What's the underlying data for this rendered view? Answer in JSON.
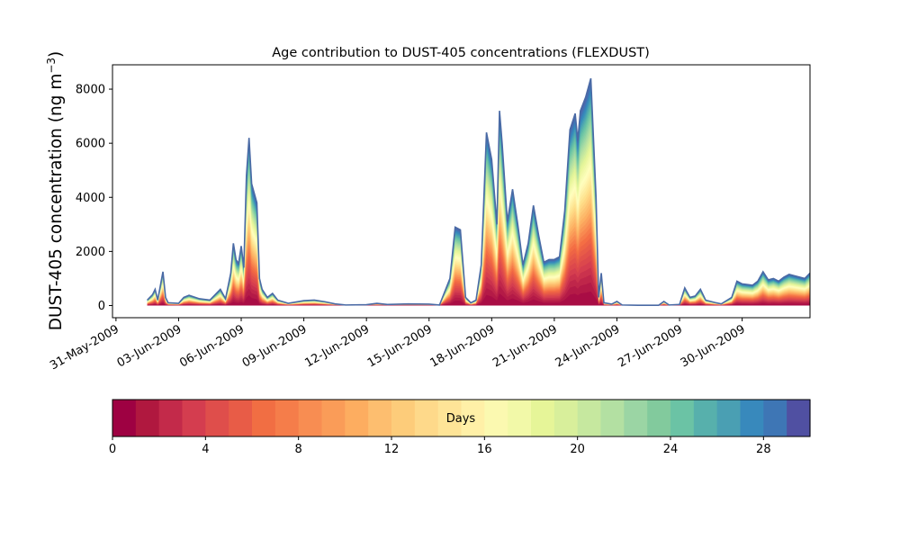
{
  "chart_data": {
    "type": "area",
    "stacking": "stacked",
    "title": "Age contribution to DUST-405 concentrations (FLEXDUST)",
    "xlabel": "",
    "ylabel": "DUST-405 concentration (ng m",
    "ylabel_superscript": "−3",
    "ylabel_suffix": ")",
    "xlim": [
      "2009-05-30T20:00",
      "2009-07-03T06:00"
    ],
    "ylim": [
      -450,
      8900
    ],
    "x_ticks": [
      "31-May-2009",
      "03-Jun-2009",
      "06-Jun-2009",
      "09-Jun-2009",
      "12-Jun-2009",
      "15-Jun-2009",
      "18-Jun-2009",
      "21-Jun-2009",
      "24-Jun-2009",
      "27-Jun-2009",
      "30-Jun-2009"
    ],
    "x_tick_dates": [
      "2009-05-31",
      "2009-06-03",
      "2009-06-06",
      "2009-06-09",
      "2009-06-12",
      "2009-06-15",
      "2009-06-18",
      "2009-06-21",
      "2009-06-24",
      "2009-06-27",
      "2009-06-30"
    ],
    "y_ticks": [
      0,
      2000,
      4000,
      6000,
      8000
    ],
    "grid": false,
    "legend": "none",
    "outline_color": "#4a6aa5",
    "total": [
      [
        "2009-06-01T12:00",
        200
      ],
      [
        "2009-06-01T18:00",
        400
      ],
      [
        "2009-06-01T21:00",
        600
      ],
      [
        "2009-06-02T00:00",
        200
      ],
      [
        "2009-06-02T06:00",
        1250
      ],
      [
        "2009-06-02T09:00",
        300
      ],
      [
        "2009-06-02T12:00",
        100
      ],
      [
        "2009-06-03T00:00",
        80
      ],
      [
        "2009-06-03T06:00",
        300
      ],
      [
        "2009-06-03T12:00",
        380
      ],
      [
        "2009-06-04T00:00",
        250
      ],
      [
        "2009-06-04T12:00",
        200
      ],
      [
        "2009-06-05T00:00",
        600
      ],
      [
        "2009-06-05T06:00",
        250
      ],
      [
        "2009-06-05T12:00",
        1200
      ],
      [
        "2009-06-05T15:00",
        2300
      ],
      [
        "2009-06-05T18:00",
        1700
      ],
      [
        "2009-06-05T21:00",
        1550
      ],
      [
        "2009-06-06T00:00",
        2200
      ],
      [
        "2009-06-06T03:00",
        1400
      ],
      [
        "2009-06-06T06:00",
        4800
      ],
      [
        "2009-06-06T09:00",
        6200
      ],
      [
        "2009-06-06T12:00",
        4500
      ],
      [
        "2009-06-06T18:00",
        3800
      ],
      [
        "2009-06-06T21:00",
        1000
      ],
      [
        "2009-06-07T00:00",
        600
      ],
      [
        "2009-06-07T06:00",
        300
      ],
      [
        "2009-06-07T12:00",
        450
      ],
      [
        "2009-06-07T18:00",
        200
      ],
      [
        "2009-06-08T06:00",
        80
      ],
      [
        "2009-06-09T00:00",
        180
      ],
      [
        "2009-06-09T12:00",
        200
      ],
      [
        "2009-06-10T00:00",
        140
      ],
      [
        "2009-06-10T12:00",
        60
      ],
      [
        "2009-06-11T00:00",
        20
      ],
      [
        "2009-06-12T00:00",
        30
      ],
      [
        "2009-06-12T12:00",
        80
      ],
      [
        "2009-06-13T00:00",
        40
      ],
      [
        "2009-06-14T00:00",
        60
      ],
      [
        "2009-06-15T00:00",
        50
      ],
      [
        "2009-06-15T12:00",
        20
      ],
      [
        "2009-06-16T00:00",
        1000
      ],
      [
        "2009-06-16T06:00",
        2900
      ],
      [
        "2009-06-16T12:00",
        2800
      ],
      [
        "2009-06-16T18:00",
        300
      ],
      [
        "2009-06-17T00:00",
        100
      ],
      [
        "2009-06-17T06:00",
        200
      ],
      [
        "2009-06-17T12:00",
        1500
      ],
      [
        "2009-06-17T18:00",
        6400
      ],
      [
        "2009-06-18T00:00",
        5400
      ],
      [
        "2009-06-18T06:00",
        3000
      ],
      [
        "2009-06-18T09:00",
        7200
      ],
      [
        "2009-06-18T12:00",
        6000
      ],
      [
        "2009-06-18T18:00",
        3100
      ],
      [
        "2009-06-19T00:00",
        4300
      ],
      [
        "2009-06-19T06:00",
        3000
      ],
      [
        "2009-06-19T12:00",
        1500
      ],
      [
        "2009-06-19T18:00",
        2300
      ],
      [
        "2009-06-20T00:00",
        3700
      ],
      [
        "2009-06-20T06:00",
        2600
      ],
      [
        "2009-06-20T12:00",
        1600
      ],
      [
        "2009-06-20T18:00",
        1700
      ],
      [
        "2009-06-21T00:00",
        1700
      ],
      [
        "2009-06-21T06:00",
        1800
      ],
      [
        "2009-06-21T12:00",
        3500
      ],
      [
        "2009-06-21T18:00",
        6500
      ],
      [
        "2009-06-22T00:00",
        7100
      ],
      [
        "2009-06-22T03:00",
        6100
      ],
      [
        "2009-06-22T06:00",
        7200
      ],
      [
        "2009-06-22T12:00",
        7700
      ],
      [
        "2009-06-22T18:00",
        8400
      ],
      [
        "2009-06-23T00:00",
        4000
      ],
      [
        "2009-06-23T03:00",
        300
      ],
      [
        "2009-06-23T06:00",
        1200
      ],
      [
        "2009-06-23T09:00",
        100
      ],
      [
        "2009-06-23T18:00",
        50
      ],
      [
        "2009-06-24T00:00",
        150
      ],
      [
        "2009-06-24T06:00",
        20
      ],
      [
        "2009-06-25T00:00",
        10
      ],
      [
        "2009-06-26T00:00",
        10
      ],
      [
        "2009-06-26T06:00",
        150
      ],
      [
        "2009-06-26T12:00",
        20
      ],
      [
        "2009-06-27T00:00",
        40
      ],
      [
        "2009-06-27T06:00",
        650
      ],
      [
        "2009-06-27T12:00",
        300
      ],
      [
        "2009-06-27T18:00",
        350
      ],
      [
        "2009-06-28T00:00",
        600
      ],
      [
        "2009-06-28T06:00",
        200
      ],
      [
        "2009-06-28T18:00",
        100
      ],
      [
        "2009-06-29T00:00",
        60
      ],
      [
        "2009-06-29T12:00",
        300
      ],
      [
        "2009-06-29T18:00",
        900
      ],
      [
        "2009-06-30T00:00",
        800
      ],
      [
        "2009-06-30T12:00",
        750
      ],
      [
        "2009-06-30T18:00",
        900
      ],
      [
        "2009-07-01T00:00",
        1250
      ],
      [
        "2009-07-01T06:00",
        950
      ],
      [
        "2009-07-01T12:00",
        1000
      ],
      [
        "2009-07-01T18:00",
        900
      ],
      [
        "2009-07-02T00:00",
        1050
      ],
      [
        "2009-07-02T06:00",
        1150
      ],
      [
        "2009-07-02T12:00",
        1100
      ],
      [
        "2009-07-02T18:00",
        1050
      ],
      [
        "2009-07-03T00:00",
        1000
      ],
      [
        "2009-07-03T06:00",
        1200
      ]
    ],
    "colorbar": {
      "label": "Days",
      "range": [
        0,
        30
      ],
      "levels": 30,
      "ticks": [
        0,
        4,
        8,
        12,
        16,
        20,
        24,
        28
      ],
      "colors": [
        "#9e0142",
        "#b0183f",
        "#c32a4a",
        "#d43d4f",
        "#df4e4b",
        "#e85c47",
        "#f16e43",
        "#f57d4a",
        "#f88d52",
        "#fa9c58",
        "#fdad60",
        "#fdbe6f",
        "#fdcc7a",
        "#fed98a",
        "#fee497",
        "#fff0a7",
        "#fbf9b0",
        "#f2f9a8",
        "#e6f598",
        "#d8ef9b",
        "#c6e89f",
        "#b3e0a2",
        "#9bd5a4",
        "#82ca9d",
        "#6bc3a5",
        "#57b0ac",
        "#4a9fb3",
        "#3889bc",
        "#3e76b5",
        "#5050a2"
      ],
      "scale_colors": [
        "#9e0142",
        "#d53e4f",
        "#f46d43",
        "#fdae61",
        "#fee08b",
        "#ffffbf",
        "#e6f598",
        "#abdda4",
        "#66c2a5",
        "#3288bd",
        "#5e4fa2"
      ]
    }
  }
}
